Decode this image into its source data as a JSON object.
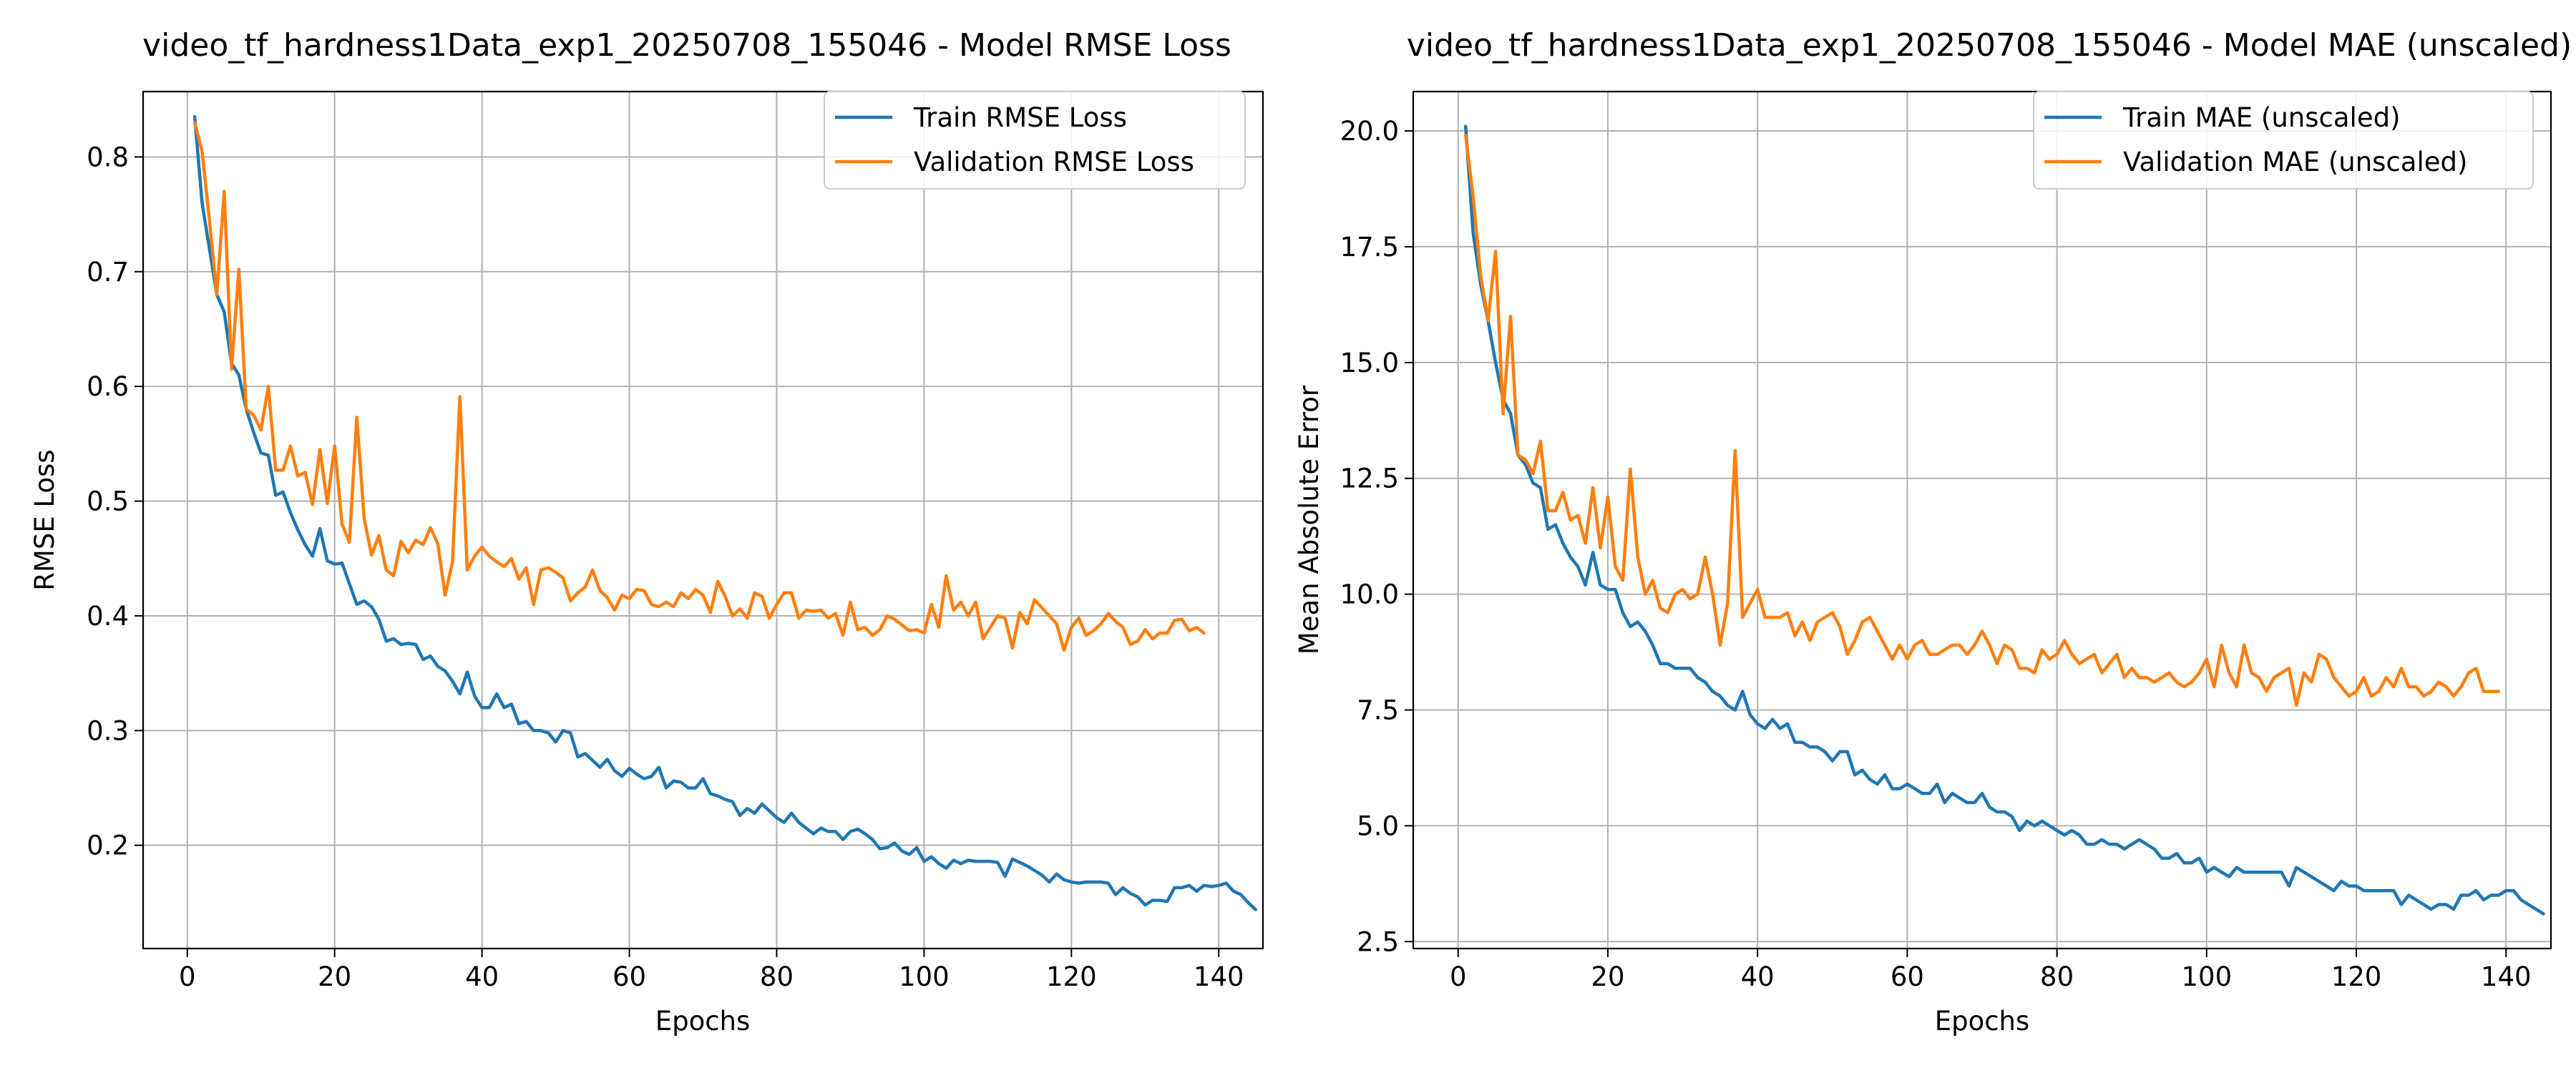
{
  "chart_data": [
    {
      "type": "line",
      "title": "video_tf_hardness1Data_exp1_20250708_155046 - Model RMSE Loss",
      "xlabel": "Epochs",
      "ylabel": "RMSE Loss",
      "xlim": [
        -6,
        146
      ],
      "ylim": [
        0.11,
        0.857
      ],
      "xticks": [
        0,
        20,
        40,
        60,
        80,
        100,
        120,
        140
      ],
      "yticks": [
        0.2,
        0.3,
        0.4,
        0.5,
        0.6,
        0.7,
        0.8
      ],
      "yticklabels": [
        "0.2",
        "0.3",
        "0.4",
        "0.5",
        "0.6",
        "0.7",
        "0.8"
      ],
      "grid": true,
      "legend_position": "top-right",
      "series": [
        {
          "name": "Train RMSE Loss",
          "color": "#1f77b4",
          "x_start": 1,
          "values": [
            0.835,
            0.76,
            0.72,
            0.68,
            0.665,
            0.62,
            0.61,
            0.58,
            0.56,
            0.542,
            0.54,
            0.505,
            0.508,
            0.49,
            0.475,
            0.462,
            0.452,
            0.476,
            0.448,
            0.445,
            0.446,
            0.428,
            0.41,
            0.413,
            0.408,
            0.397,
            0.378,
            0.38,
            0.375,
            0.376,
            0.375,
            0.362,
            0.365,
            0.356,
            0.352,
            0.343,
            0.332,
            0.351,
            0.33,
            0.32,
            0.32,
            0.332,
            0.32,
            0.323,
            0.306,
            0.308,
            0.3,
            0.3,
            0.298,
            0.29,
            0.3,
            0.298,
            0.277,
            0.28,
            0.274,
            0.268,
            0.275,
            0.265,
            0.26,
            0.267,
            0.262,
            0.258,
            0.26,
            0.268,
            0.25,
            0.256,
            0.255,
            0.25,
            0.25,
            0.258,
            0.245,
            0.243,
            0.24,
            0.238,
            0.226,
            0.232,
            0.228,
            0.236,
            0.23,
            0.224,
            0.22,
            0.228,
            0.22,
            0.215,
            0.21,
            0.215,
            0.212,
            0.212,
            0.205,
            0.212,
            0.214,
            0.21,
            0.205,
            0.197,
            0.198,
            0.202,
            0.195,
            0.192,
            0.198,
            0.186,
            0.19,
            0.184,
            0.18,
            0.187,
            0.184,
            0.187,
            0.186,
            0.186,
            0.186,
            0.185,
            0.173,
            0.188,
            0.185,
            0.182,
            0.178,
            0.174,
            0.168,
            0.175,
            0.17,
            0.168,
            0.167,
            0.168,
            0.168,
            0.168,
            0.167,
            0.157,
            0.163,
            0.158,
            0.155,
            0.148,
            0.152,
            0.152,
            0.151,
            0.163,
            0.163,
            0.165,
            0.16,
            0.165,
            0.164,
            0.165,
            0.167,
            0.16,
            0.157,
            0.15,
            0.144
          ]
        },
        {
          "name": "Validation RMSE Loss",
          "color": "#ff7f0e",
          "x_start": 1,
          "values": [
            0.83,
            0.805,
            0.745,
            0.68,
            0.77,
            0.615,
            0.702,
            0.58,
            0.575,
            0.562,
            0.6,
            0.527,
            0.527,
            0.548,
            0.522,
            0.525,
            0.497,
            0.545,
            0.498,
            0.548,
            0.48,
            0.464,
            0.573,
            0.485,
            0.453,
            0.47,
            0.44,
            0.435,
            0.465,
            0.455,
            0.466,
            0.462,
            0.477,
            0.463,
            0.418,
            0.447,
            0.591,
            0.44,
            0.452,
            0.46,
            0.452,
            0.447,
            0.443,
            0.45,
            0.432,
            0.442,
            0.41,
            0.44,
            0.442,
            0.438,
            0.433,
            0.413,
            0.42,
            0.425,
            0.44,
            0.422,
            0.416,
            0.405,
            0.418,
            0.415,
            0.423,
            0.422,
            0.41,
            0.408,
            0.412,
            0.408,
            0.42,
            0.415,
            0.423,
            0.418,
            0.403,
            0.43,
            0.417,
            0.4,
            0.406,
            0.398,
            0.42,
            0.417,
            0.398,
            0.41,
            0.42,
            0.42,
            0.398,
            0.405,
            0.404,
            0.405,
            0.398,
            0.402,
            0.383,
            0.412,
            0.388,
            0.39,
            0.383,
            0.388,
            0.4,
            0.397,
            0.392,
            0.387,
            0.388,
            0.385,
            0.41,
            0.39,
            0.435,
            0.405,
            0.412,
            0.4,
            0.412,
            0.38,
            0.39,
            0.4,
            0.398,
            0.372,
            0.403,
            0.393,
            0.414,
            0.407,
            0.4,
            0.393,
            0.37,
            0.39,
            0.398,
            0.383,
            0.387,
            0.393,
            0.402,
            0.395,
            0.39,
            0.375,
            0.378,
            0.388,
            0.38,
            0.385,
            0.385,
            0.396,
            0.397,
            0.387,
            0.39,
            0.385
          ]
        }
      ]
    },
    {
      "type": "line",
      "title": "video_tf_hardness1Data_exp1_20250708_155046 - Model MAE (unscaled)",
      "xlabel": "Epochs",
      "ylabel": "Mean Absolute Error",
      "xlim": [
        -6,
        146
      ],
      "ylim": [
        2.35,
        20.85
      ],
      "xticks": [
        0,
        20,
        40,
        60,
        80,
        100,
        120,
        140
      ],
      "yticks": [
        2.5,
        5.0,
        7.5,
        10.0,
        12.5,
        15.0,
        17.5,
        20.0
      ],
      "yticklabels": [
        "2.5",
        "5.0",
        "7.5",
        "10.0",
        "12.5",
        "15.0",
        "17.5",
        "20.0"
      ],
      "grid": true,
      "legend_position": "top-right",
      "series": [
        {
          "name": "Train MAE (unscaled)",
          "color": "#1f77b4",
          "x_start": 1,
          "values": [
            20.1,
            17.8,
            16.7,
            15.9,
            15.0,
            14.2,
            13.9,
            13.0,
            12.8,
            12.4,
            12.3,
            11.4,
            11.5,
            11.1,
            10.8,
            10.6,
            10.2,
            10.9,
            10.2,
            10.1,
            10.1,
            9.6,
            9.3,
            9.4,
            9.2,
            8.9,
            8.5,
            8.5,
            8.4,
            8.4,
            8.4,
            8.2,
            8.1,
            7.9,
            7.8,
            7.6,
            7.5,
            7.9,
            7.4,
            7.2,
            7.1,
            7.3,
            7.1,
            7.2,
            6.8,
            6.8,
            6.7,
            6.7,
            6.6,
            6.4,
            6.6,
            6.6,
            6.1,
            6.2,
            6.0,
            5.9,
            6.1,
            5.8,
            5.8,
            5.9,
            5.8,
            5.7,
            5.7,
            5.9,
            5.5,
            5.7,
            5.6,
            5.5,
            5.5,
            5.7,
            5.4,
            5.3,
            5.3,
            5.2,
            4.9,
            5.1,
            5.0,
            5.1,
            5.0,
            4.9,
            4.8,
            4.9,
            4.8,
            4.6,
            4.6,
            4.7,
            4.6,
            4.6,
            4.5,
            4.6,
            4.7,
            4.6,
            4.5,
            4.3,
            4.3,
            4.4,
            4.2,
            4.2,
            4.3,
            4.0,
            4.1,
            4.0,
            3.9,
            4.1,
            4.0,
            4.0,
            4.0,
            4.0,
            4.0,
            4.0,
            3.7,
            4.1,
            4.0,
            3.9,
            3.8,
            3.7,
            3.6,
            3.8,
            3.7,
            3.7,
            3.6,
            3.6,
            3.6,
            3.6,
            3.6,
            3.3,
            3.5,
            3.4,
            3.3,
            3.2,
            3.3,
            3.3,
            3.2,
            3.5,
            3.5,
            3.6,
            3.4,
            3.5,
            3.5,
            3.6,
            3.6,
            3.4,
            3.3,
            3.2,
            3.1
          ]
        },
        {
          "name": "Validation MAE (unscaled)",
          "color": "#ff7f0e",
          "x_start": 1,
          "values": [
            19.9,
            18.6,
            16.9,
            15.9,
            17.4,
            13.9,
            16.0,
            13.0,
            12.9,
            12.6,
            13.3,
            11.8,
            11.8,
            12.2,
            11.6,
            11.7,
            11.1,
            12.3,
            11.0,
            12.1,
            10.6,
            10.3,
            12.7,
            10.8,
            10.0,
            10.3,
            9.7,
            9.6,
            10.0,
            10.1,
            9.9,
            10.0,
            10.8,
            10.0,
            8.9,
            9.8,
            13.1,
            9.5,
            9.8,
            10.1,
            9.5,
            9.5,
            9.5,
            9.6,
            9.1,
            9.4,
            9.0,
            9.4,
            9.5,
            9.6,
            9.3,
            8.7,
            9.0,
            9.4,
            9.5,
            9.2,
            8.9,
            8.6,
            8.9,
            8.6,
            8.9,
            9.0,
            8.7,
            8.7,
            8.8,
            8.9,
            8.9,
            8.7,
            8.9,
            9.2,
            8.9,
            8.5,
            8.9,
            8.8,
            8.4,
            8.4,
            8.3,
            8.8,
            8.6,
            8.7,
            9.0,
            8.7,
            8.5,
            8.6,
            8.7,
            8.3,
            8.5,
            8.7,
            8.2,
            8.4,
            8.2,
            8.2,
            8.1,
            8.2,
            8.3,
            8.1,
            8.0,
            8.1,
            8.3,
            8.6,
            8.0,
            8.9,
            8.3,
            8.0,
            8.9,
            8.3,
            8.2,
            7.9,
            8.2,
            8.3,
            8.4,
            7.6,
            8.3,
            8.1,
            8.7,
            8.6,
            8.2,
            8.0,
            7.8,
            7.9,
            8.2,
            7.8,
            7.9,
            8.2,
            8.0,
            8.4,
            8.0,
            8.0,
            7.8,
            7.9,
            8.1,
            8.0,
            7.8,
            8.0,
            8.3,
            8.4,
            7.9,
            7.9,
            7.9
          ]
        }
      ]
    }
  ]
}
